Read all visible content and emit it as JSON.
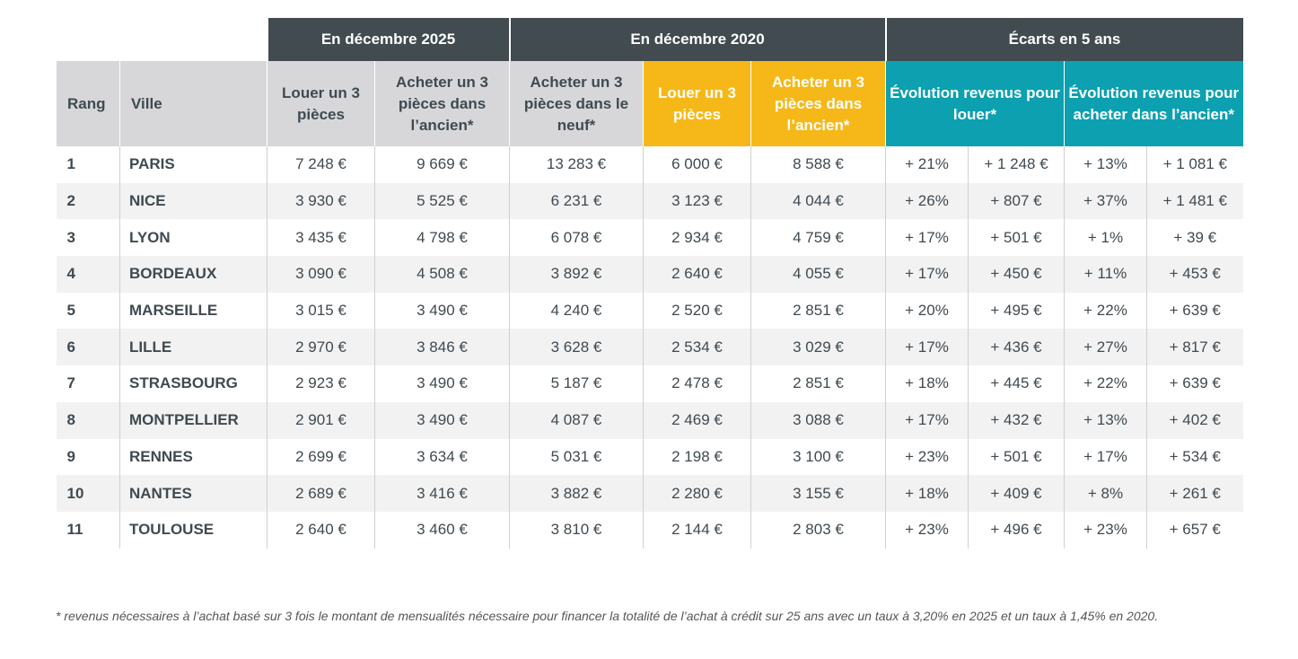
{
  "groups": [
    "En décembre 2025",
    "En décembre 2020",
    "Écarts en 5 ans"
  ],
  "headers": [
    "Rang",
    "Ville",
    "Louer un 3 pièces",
    "Acheter un 3 pièces dans l’ancien*",
    "Acheter un 3 pièces dans le neuf*",
    "Louer un 3 pièces",
    "Acheter un 3 pièces dans l’ancien*",
    "Évolution revenus pour louer*",
    "Évolution revenus pour acheter dans l’ancien*"
  ],
  "colors": {
    "group_header": "#414b50",
    "sub_header": "#d7d7da",
    "highlight_2020": "#f6b818",
    "ecarts": "#0ca0b0"
  },
  "rows": [
    [
      "1",
      "PARIS",
      "7 248 €",
      "9 669 €",
      "13 283 €",
      "6 000 €",
      "8 588 €",
      "+ 21%",
      "+ 1 248 €",
      "+ 13%",
      "+ 1 081 €"
    ],
    [
      "2",
      "NICE",
      "3 930 €",
      "5 525 €",
      "6 231 €",
      "3 123 €",
      "4 044 €",
      "+ 26%",
      "+ 807 €",
      "+ 37%",
      "+ 1 481 €"
    ],
    [
      "3",
      "LYON",
      "3 435 €",
      "4 798 €",
      "6 078 €",
      "2 934 €",
      "4 759 €",
      "+ 17%",
      "+ 501 €",
      "+ 1%",
      "+ 39 €"
    ],
    [
      "4",
      "BORDEAUX",
      "3 090 €",
      "4 508 €",
      "3 892 €",
      "2 640 €",
      "4 055 €",
      "+ 17%",
      "+ 450 €",
      "+ 11%",
      "+ 453 €"
    ],
    [
      "5",
      "MARSEILLE",
      "3 015 €",
      "3 490 €",
      "4 240 €",
      "2 520 €",
      "2 851 €",
      "+ 20%",
      "+ 495 €",
      "+ 22%",
      "+ 639 €"
    ],
    [
      "6",
      "LILLE",
      "2 970 €",
      "3 846 €",
      "3 628 €",
      "2 534 €",
      "3 029 €",
      "+ 17%",
      "+ 436 €",
      "+ 27%",
      "+ 817 €"
    ],
    [
      "7",
      "STRASBOURG",
      "2 923 €",
      "3 490 €",
      "5 187 €",
      "2 478 €",
      "2 851 €",
      "+ 18%",
      "+ 445 €",
      "+ 22%",
      "+ 639 €"
    ],
    [
      "8",
      "MONTPELLIER",
      "2 901 €",
      "3 490 €",
      "4 087 €",
      "2 469 €",
      "3 088 €",
      "+ 17%",
      "+ 432 €",
      "+ 13%",
      "+ 402 €"
    ],
    [
      "9",
      "RENNES",
      "2 699 €",
      "3 634 €",
      "5 031 €",
      "2 198 €",
      "3 100 €",
      "+ 23%",
      "+ 501 €",
      "+ 17%",
      "+ 534 €"
    ],
    [
      "10",
      "NANTES",
      "2 689 €",
      "3 416 €",
      "3 882 €",
      "2 280 €",
      "3 155 €",
      "+ 18%",
      "+ 409 €",
      "+ 8%",
      "+ 261 €"
    ],
    [
      "11",
      "TOULOUSE",
      "2 640 €",
      "3 460 €",
      "3 810 €",
      "2 144 €",
      "2 803 €",
      "+ 23%",
      "+ 496 €",
      "+ 23%",
      "+ 657 €"
    ]
  ],
  "footnote": "* revenus nécessaires à l’achat basé sur 3 fois le montant de mensualités nécessaire pour financer la totalité de l’achat à crédit sur 25 ans avec un taux à 3,20% en 2025 et un taux à 1,45% en 2020."
}
